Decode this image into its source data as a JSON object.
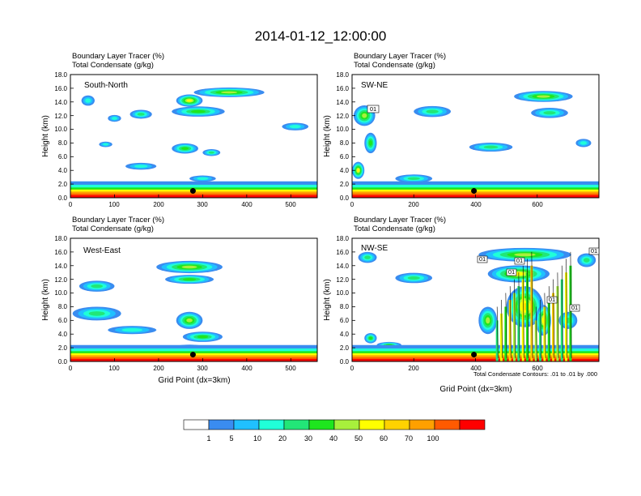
{
  "title": "2014-01-12_12:00:00",
  "subtitle_lines": [
    "Boundary Layer Tracer   (%)",
    "Total Condensate   (g/kg)"
  ],
  "colors": {
    "bins": [
      "#ffffff",
      "#3a8cf0",
      "#20c0ff",
      "#20ffd8",
      "#22e678",
      "#1ee61e",
      "#a8f03c",
      "#ffff00",
      "#ffd200",
      "#ffa000",
      "#ff5a00",
      "#ff0000"
    ]
  },
  "chart_data": [
    {
      "type": "heatmap",
      "panel_label": "South-North",
      "xlabel": "",
      "ylabel": "Height (km)",
      "xlim": [
        0,
        560
      ],
      "ylim": [
        0,
        18
      ],
      "xticks": [
        "0",
        "100",
        "200",
        "300",
        "400",
        "500"
      ],
      "yticks": [
        "0.0",
        "2.0",
        "4.0",
        "6.0",
        "8.0",
        "10.0",
        "12.0",
        "14.0",
        "16.0",
        "18.0"
      ],
      "marker": {
        "x": 278,
        "y": 1.0
      },
      "cloud_blobs": [
        {
          "x": 360,
          "y": 15.4,
          "w": 160,
          "h": 1.4,
          "max": 40
        },
        {
          "x": 270,
          "y": 14.2,
          "w": 60,
          "h": 1.8,
          "max": 50
        },
        {
          "x": 290,
          "y": 12.6,
          "w": 120,
          "h": 1.5,
          "max": 30
        },
        {
          "x": 160,
          "y": 12.2,
          "w": 50,
          "h": 1.3,
          "max": 20
        },
        {
          "x": 100,
          "y": 11.6,
          "w": 30,
          "h": 1.0,
          "max": 10
        },
        {
          "x": 40,
          "y": 14.2,
          "w": 30,
          "h": 1.5,
          "max": 10
        },
        {
          "x": 510,
          "y": 10.4,
          "w": 60,
          "h": 1.1,
          "max": 10
        },
        {
          "x": 80,
          "y": 7.8,
          "w": 30,
          "h": 0.8,
          "max": 10
        },
        {
          "x": 260,
          "y": 7.2,
          "w": 60,
          "h": 1.5,
          "max": 30
        },
        {
          "x": 320,
          "y": 6.6,
          "w": 40,
          "h": 1.0,
          "max": 20
        },
        {
          "x": 160,
          "y": 4.6,
          "w": 70,
          "h": 1.0,
          "max": 10
        },
        {
          "x": 300,
          "y": 2.8,
          "w": 60,
          "h": 0.9,
          "max": 10
        }
      ]
    },
    {
      "type": "heatmap",
      "panel_label": "SW-NE",
      "xlabel": "",
      "ylabel": "Height (km)",
      "xlim": [
        0,
        800
      ],
      "ylim": [
        0,
        18
      ],
      "xticks": [
        "0",
        "200",
        "400",
        "600"
      ],
      "yticks": [
        "0.0",
        "2.0",
        "4.0",
        "6.0",
        "8.0",
        "10.0",
        "12.0",
        "14.0",
        "16.0",
        "18.0"
      ],
      "marker": {
        "x": 395,
        "y": 1.0
      },
      "contour_labels": [
        "01"
      ],
      "cloud_blobs": [
        {
          "x": 40,
          "y": 12.0,
          "w": 70,
          "h": 3.0,
          "max": 40
        },
        {
          "x": 60,
          "y": 8.0,
          "w": 40,
          "h": 3.0,
          "max": 30
        },
        {
          "x": 20,
          "y": 4.0,
          "w": 40,
          "h": 2.5,
          "max": 50
        },
        {
          "x": 260,
          "y": 12.6,
          "w": 120,
          "h": 1.6,
          "max": 20
        },
        {
          "x": 620,
          "y": 14.8,
          "w": 190,
          "h": 1.6,
          "max": 40
        },
        {
          "x": 640,
          "y": 12.4,
          "w": 120,
          "h": 1.5,
          "max": 20
        },
        {
          "x": 450,
          "y": 7.4,
          "w": 140,
          "h": 1.3,
          "max": 20
        },
        {
          "x": 200,
          "y": 2.8,
          "w": 120,
          "h": 1.2,
          "max": 20
        },
        {
          "x": 750,
          "y": 8.0,
          "w": 50,
          "h": 1.2,
          "max": 10
        }
      ]
    },
    {
      "type": "heatmap",
      "panel_label": "West-East",
      "xlabel": "Grid Point (dx=3km)",
      "ylabel": "Height (km)",
      "xlim": [
        0,
        560
      ],
      "ylim": [
        0,
        18
      ],
      "xticks": [
        "0",
        "100",
        "200",
        "300",
        "400",
        "500"
      ],
      "yticks": [
        "0.0",
        "2.0",
        "4.0",
        "6.0",
        "8.0",
        "10.0",
        "12.0",
        "14.0",
        "16.0",
        "18.0"
      ],
      "marker": {
        "x": 278,
        "y": 1.0
      },
      "cloud_blobs": [
        {
          "x": 270,
          "y": 13.8,
          "w": 150,
          "h": 1.8,
          "max": 40
        },
        {
          "x": 270,
          "y": 12.0,
          "w": 110,
          "h": 1.3,
          "max": 30
        },
        {
          "x": 60,
          "y": 11.0,
          "w": 80,
          "h": 1.6,
          "max": 20
        },
        {
          "x": 60,
          "y": 7.0,
          "w": 110,
          "h": 2.0,
          "max": 20
        },
        {
          "x": 140,
          "y": 4.6,
          "w": 110,
          "h": 1.2,
          "max": 10
        },
        {
          "x": 270,
          "y": 6.0,
          "w": 60,
          "h": 2.5,
          "max": 40
        },
        {
          "x": 300,
          "y": 3.6,
          "w": 90,
          "h": 1.5,
          "max": 30
        },
        {
          "x": 270,
          "y": 2.0,
          "w": 80,
          "h": 0.9,
          "max": 20
        }
      ]
    },
    {
      "type": "heatmap",
      "panel_label": "NW-SE",
      "xlabel": "Grid Point (dx=3km)",
      "ylabel": "Height (km)",
      "xlim": [
        0,
        800
      ],
      "ylim": [
        0,
        18
      ],
      "xticks": [
        "0",
        "200",
        "400",
        "600"
      ],
      "yticks": [
        "0.0",
        "2.0",
        "4.0",
        "6.0",
        "8.0",
        "10.0",
        "12.0",
        "14.0",
        "16.0",
        "18.0"
      ],
      "marker": {
        "x": 395,
        "y": 1.0
      },
      "contour_labels": [
        "01",
        "01",
        "01",
        "01",
        "01",
        "01"
      ],
      "note": "Total Condensate Contours: .01 to .01 by .000",
      "cloud_blobs": [
        {
          "x": 560,
          "y": 15.6,
          "w": 300,
          "h": 2.0,
          "max": 40
        },
        {
          "x": 540,
          "y": 12.8,
          "w": 200,
          "h": 2.5,
          "max": 50
        },
        {
          "x": 560,
          "y": 8.0,
          "w": 120,
          "h": 6.0,
          "max": 60
        },
        {
          "x": 440,
          "y": 6.0,
          "w": 60,
          "h": 4.0,
          "max": 40
        },
        {
          "x": 620,
          "y": 6.0,
          "w": 50,
          "h": 4.5,
          "max": 50
        },
        {
          "x": 200,
          "y": 12.2,
          "w": 120,
          "h": 1.5,
          "max": 20
        },
        {
          "x": 50,
          "y": 15.2,
          "w": 60,
          "h": 1.6,
          "max": 20
        },
        {
          "x": 60,
          "y": 3.4,
          "w": 40,
          "h": 1.5,
          "max": 30
        },
        {
          "x": 760,
          "y": 14.8,
          "w": 60,
          "h": 2.0,
          "max": 20
        },
        {
          "x": 700,
          "y": 6.0,
          "w": 60,
          "h": 2.5,
          "max": 20
        },
        {
          "x": 120,
          "y": 2.4,
          "w": 80,
          "h": 0.9,
          "max": 30
        }
      ]
    }
  ],
  "colorbar": {
    "labels": [
      "1",
      "5",
      "10",
      "20",
      "30",
      "40",
      "50",
      "60",
      "70",
      "100"
    ]
  }
}
